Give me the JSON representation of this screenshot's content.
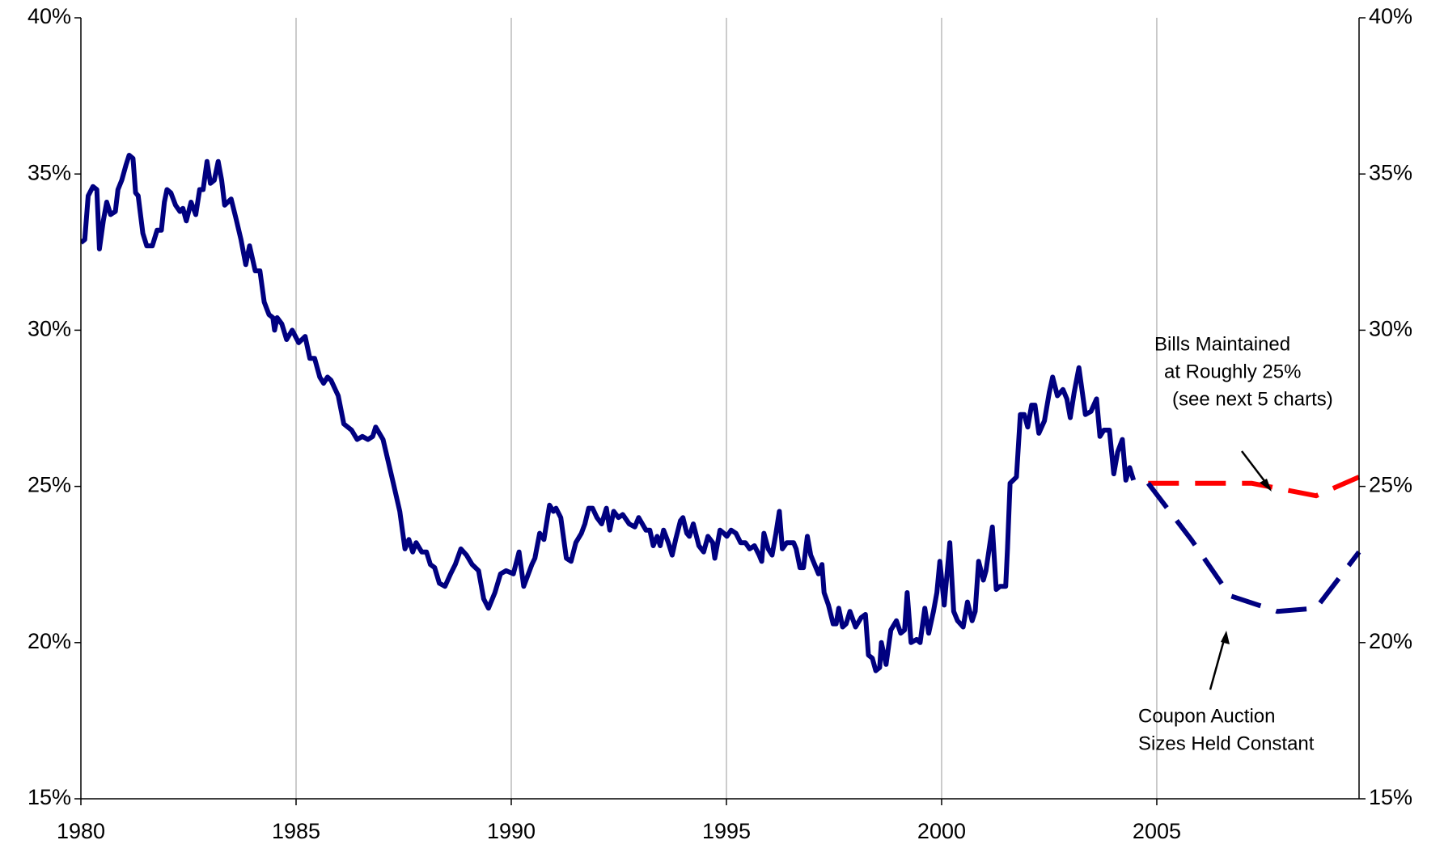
{
  "chart_data": {
    "type": "line",
    "xlim": [
      1980,
      2009.7
    ],
    "xticks": [
      1980,
      1985,
      1990,
      1995,
      2000,
      2005
    ],
    "ylim": [
      15,
      40
    ],
    "yticks": [
      {
        "value": 15,
        "label": "15%"
      },
      {
        "value": 20,
        "label": "20%"
      },
      {
        "value": 25,
        "label": "25%"
      },
      {
        "value": 30,
        "label": "30%"
      },
      {
        "value": 35,
        "label": "35%"
      },
      {
        "value": 40,
        "label": "40%"
      }
    ],
    "y2lim": [
      15,
      40
    ],
    "y2ticks": [
      {
        "value": 15,
        "label": "15%"
      },
      {
        "value": 20,
        "label": "20%"
      },
      {
        "value": 25,
        "label": "25%"
      },
      {
        "value": 30,
        "label": "30%"
      },
      {
        "value": 35,
        "label": "35%"
      },
      {
        "value": 40,
        "label": "40%"
      }
    ],
    "grid": "x",
    "series": [
      {
        "color": "#000080",
        "dashed": false,
        "x": [
          1980.0,
          1980.09,
          1980.17,
          1980.28,
          1980.37,
          1980.43,
          1980.52,
          1980.6,
          1980.69,
          1980.8,
          1980.86,
          1980.95,
          1981.05,
          1981.12,
          1981.21,
          1981.27,
          1981.33,
          1981.44,
          1981.53,
          1981.66,
          1981.77,
          1981.87,
          1981.94,
          1982.0,
          1982.09,
          1982.2,
          1982.3,
          1982.37,
          1982.45,
          1982.56,
          1982.67,
          1982.76,
          1982.84,
          1982.93,
          1983.01,
          1983.1,
          1983.19,
          1983.27,
          1983.34,
          1983.49,
          1983.6,
          1983.72,
          1983.83,
          1983.92,
          1984.05,
          1984.16,
          1984.26,
          1984.37,
          1984.46,
          1984.5,
          1984.56,
          1984.67,
          1984.78,
          1984.91,
          1985.06,
          1985.21,
          1985.32,
          1985.43,
          1985.55,
          1985.64,
          1985.73,
          1985.81,
          1985.98,
          1986.11,
          1986.29,
          1986.42,
          1986.54,
          1986.67,
          1986.78,
          1986.85,
          1987.02,
          1987.26,
          1987.41,
          1987.53,
          1987.62,
          1987.71,
          1987.79,
          1987.92,
          1988.03,
          1988.12,
          1988.22,
          1988.33,
          1988.46,
          1988.59,
          1988.7,
          1988.83,
          1988.96,
          1989.09,
          1989.24,
          1989.36,
          1989.47,
          1989.62,
          1989.75,
          1989.88,
          1990.05,
          1990.18,
          1990.29,
          1990.48,
          1990.55,
          1990.66,
          1990.76,
          1990.89,
          1990.98,
          1991.04,
          1991.15,
          1991.28,
          1991.39,
          1991.5,
          1991.63,
          1991.71,
          1991.8,
          1991.89,
          1991.99,
          1992.1,
          1992.21,
          1992.29,
          1992.38,
          1992.49,
          1992.59,
          1992.74,
          1992.87,
          1992.96,
          1993.13,
          1993.22,
          1993.3,
          1993.39,
          1993.46,
          1993.54,
          1993.65,
          1993.74,
          1993.82,
          1993.93,
          1993.99,
          1994.08,
          1994.14,
          1994.23,
          1994.36,
          1994.47,
          1994.57,
          1994.68,
          1994.73,
          1994.85,
          1994.94,
          1995.01,
          1995.11,
          1995.22,
          1995.33,
          1995.44,
          1995.54,
          1995.65,
          1995.76,
          1995.82,
          1995.87,
          1995.97,
          1996.06,
          1996.15,
          1996.23,
          1996.3,
          1996.4,
          1996.56,
          1996.62,
          1996.71,
          1996.79,
          1996.88,
          1996.96,
          1997.05,
          1997.14,
          1997.22,
          1997.27,
          1997.37,
          1997.48,
          1997.55,
          1997.61,
          1997.7,
          1997.78,
          1997.87,
          1998.0,
          1998.13,
          1998.23,
          1998.3,
          1998.39,
          1998.47,
          1998.56,
          1998.6,
          1998.71,
          1998.82,
          1998.95,
          1999.05,
          1999.14,
          1999.2,
          1999.29,
          1999.42,
          1999.5,
          1999.61,
          1999.7,
          1999.81,
          1999.89,
          1999.96,
          2000.06,
          2000.19,
          2000.28,
          2000.37,
          2000.5,
          2000.6,
          2000.71,
          2000.78,
          2000.86,
          2000.97,
          2001.03,
          2001.18,
          2001.27,
          2001.36,
          2001.49,
          2001.53,
          2001.59,
          2001.74,
          2001.83,
          2001.92,
          2002.0,
          2002.09,
          2002.17,
          2002.26,
          2002.39,
          2002.5,
          2002.58,
          2002.69,
          2002.82,
          2002.91,
          2002.99,
          2003.08,
          2003.19,
          2003.34,
          2003.47,
          2003.6,
          2003.68,
          2003.77,
          2003.9,
          2004.0,
          2004.09,
          2004.2,
          2004.28,
          2004.37,
          2004.46
        ],
        "values": [
          32.8,
          32.9,
          34.3,
          34.6,
          34.5,
          32.6,
          33.5,
          34.1,
          33.7,
          33.8,
          34.5,
          34.8,
          35.3,
          35.6,
          35.5,
          34.4,
          34.3,
          33.1,
          32.7,
          32.7,
          33.2,
          33.2,
          34.1,
          34.5,
          34.4,
          34.0,
          33.8,
          33.9,
          33.5,
          34.1,
          33.7,
          34.5,
          34.5,
          35.4,
          34.7,
          34.8,
          35.4,
          34.8,
          34.0,
          34.2,
          33.6,
          32.9,
          32.1,
          32.7,
          31.9,
          31.9,
          30.9,
          30.5,
          30.4,
          30.0,
          30.4,
          30.2,
          29.7,
          30.0,
          29.6,
          29.8,
          29.1,
          29.1,
          28.5,
          28.3,
          28.5,
          28.4,
          27.9,
          27.0,
          26.8,
          26.5,
          26.6,
          26.5,
          26.6,
          26.9,
          26.5,
          25.1,
          24.2,
          23.0,
          23.3,
          22.9,
          23.2,
          22.9,
          22.9,
          22.5,
          22.4,
          21.9,
          21.8,
          22.2,
          22.5,
          23.0,
          22.8,
          22.5,
          22.3,
          21.4,
          21.1,
          21.6,
          22.2,
          22.3,
          22.2,
          22.9,
          21.8,
          22.5,
          22.7,
          23.5,
          23.3,
          24.4,
          24.2,
          24.3,
          24.0,
          22.7,
          22.6,
          23.2,
          23.5,
          23.8,
          24.3,
          24.3,
          24.0,
          23.8,
          24.3,
          23.6,
          24.2,
          24.0,
          24.1,
          23.8,
          23.7,
          24.0,
          23.6,
          23.6,
          23.1,
          23.4,
          23.1,
          23.6,
          23.2,
          22.8,
          23.3,
          23.9,
          24.0,
          23.5,
          23.4,
          23.8,
          23.1,
          22.9,
          23.4,
          23.2,
          22.7,
          23.6,
          23.5,
          23.4,
          23.6,
          23.5,
          23.2,
          23.2,
          23.0,
          23.1,
          22.8,
          22.6,
          23.5,
          23.0,
          22.8,
          23.5,
          24.2,
          23.0,
          23.2,
          23.2,
          23.0,
          22.4,
          22.4,
          23.4,
          22.8,
          22.5,
          22.2,
          22.5,
          21.6,
          21.2,
          20.6,
          20.6,
          21.1,
          20.5,
          20.6,
          21.0,
          20.5,
          20.8,
          20.9,
          19.6,
          19.5,
          19.1,
          19.2,
          20.0,
          19.3,
          20.4,
          20.7,
          20.3,
          20.4,
          21.6,
          20.0,
          20.1,
          20.0,
          21.1,
          20.3,
          21.0,
          21.6,
          22.6,
          21.2,
          23.2,
          21.0,
          20.7,
          20.5,
          21.3,
          20.7,
          21.0,
          22.6,
          22.0,
          22.3,
          23.7,
          21.7,
          21.8,
          21.8,
          23.0,
          25.1,
          25.3,
          27.3,
          27.3,
          26.9,
          27.6,
          27.6,
          26.7,
          27.1,
          28.0,
          28.5,
          27.9,
          28.1,
          27.8,
          27.2,
          28.0,
          28.8,
          27.3,
          27.4,
          27.8,
          26.6,
          26.8,
          26.8,
          25.4,
          26.1,
          26.5,
          25.2,
          25.6,
          25.2
        ]
      },
      {
        "color": "#ff0000",
        "dashed": true,
        "x": [
          2004.8,
          2007.2,
          2008.7,
          2009.7
        ],
        "values": [
          25.1,
          25.1,
          24.7,
          25.3
        ]
      },
      {
        "color": "#000080",
        "dashed": true,
        "x": [
          2004.8,
          2005.8,
          2006.7,
          2007.8,
          2008.7,
          2009.7
        ],
        "values": [
          25.1,
          23.3,
          21.5,
          21.0,
          21.1,
          22.9
        ]
      }
    ],
    "annotations": [
      {
        "lines": [
          "Bills Maintained",
          "at Roughly 25%",
          "(see next 5 charts)"
        ]
      },
      {
        "lines": [
          "Coupon Auction",
          "Sizes Held Constant"
        ]
      }
    ]
  }
}
